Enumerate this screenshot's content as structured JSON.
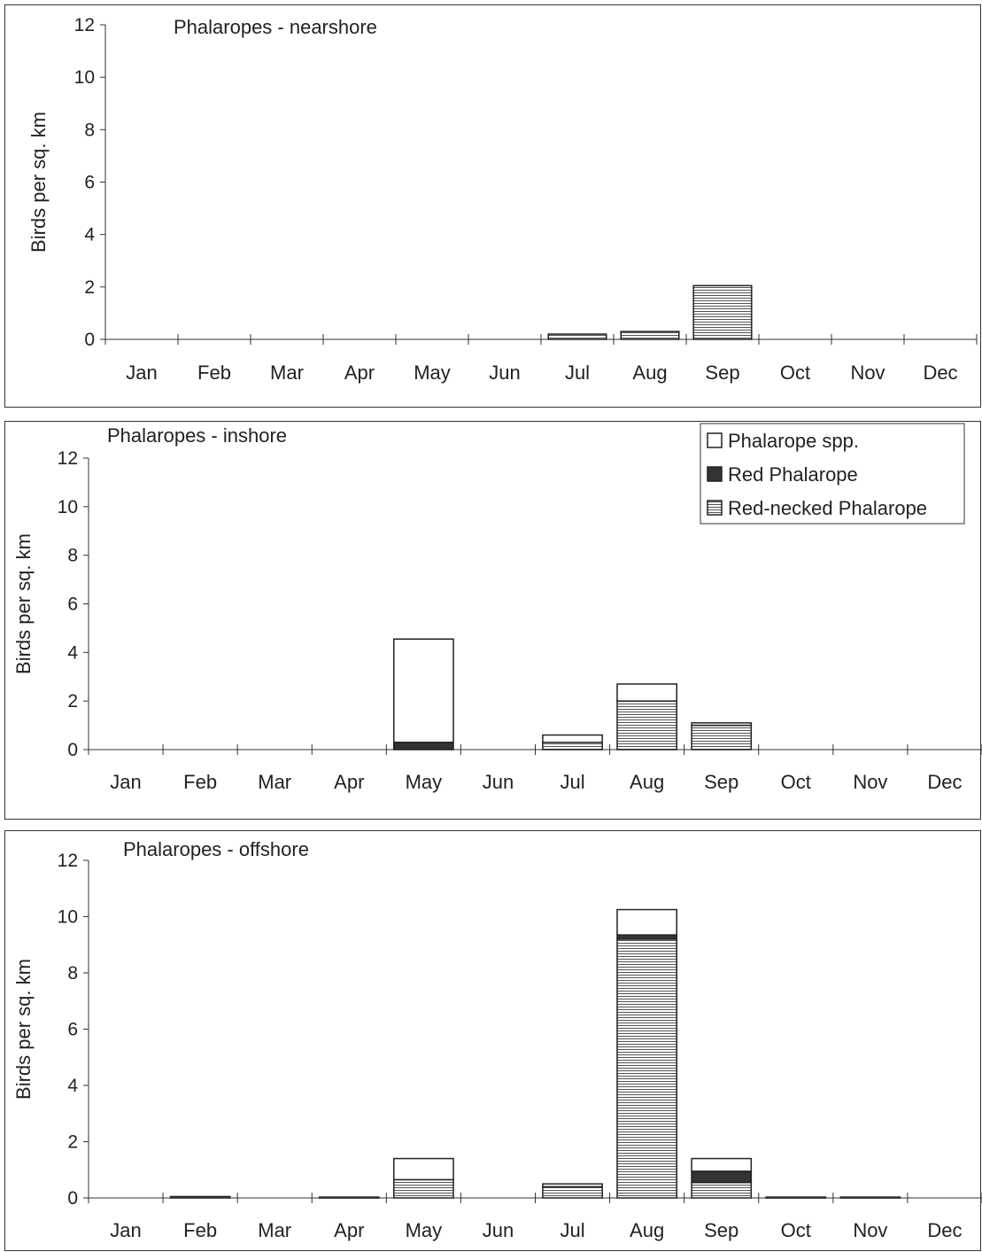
{
  "chart_data": [
    {
      "type": "bar",
      "stacked": true,
      "title": "Phalaropes - nearshore",
      "ylabel": "Birds per sq. km",
      "ylim": [
        0,
        12
      ],
      "yticks": [
        "0",
        "2",
        "4",
        "6",
        "8",
        "10",
        "12"
      ],
      "categories": [
        "Jan",
        "Feb",
        "Mar",
        "Apr",
        "May",
        "Jun",
        "Jul",
        "Aug",
        "Sep",
        "Oct",
        "Nov",
        "Dec"
      ],
      "series": [
        {
          "name": "Red-necked Phalarope",
          "values": [
            0,
            0,
            0,
            0,
            0,
            0,
            0.2,
            0.3,
            2.05,
            0,
            0,
            0
          ]
        },
        {
          "name": "Red Phalarope",
          "values": [
            0,
            0,
            0,
            0,
            0,
            0,
            0,
            0,
            0,
            0,
            0,
            0
          ]
        },
        {
          "name": "Phalarope spp.",
          "values": [
            0,
            0,
            0,
            0,
            0,
            0,
            0,
            0,
            0,
            0,
            0,
            0
          ]
        }
      ],
      "legend": false
    },
    {
      "type": "bar",
      "stacked": true,
      "title": "Phalaropes - inshore",
      "ylabel": "Birds per sq. km",
      "ylim": [
        0,
        12
      ],
      "yticks": [
        "0",
        "2",
        "4",
        "6",
        "8",
        "10",
        "12"
      ],
      "categories": [
        "Jan",
        "Feb",
        "Mar",
        "Apr",
        "May",
        "Jun",
        "Jul",
        "Aug",
        "Sep",
        "Oct",
        "Nov",
        "Dec"
      ],
      "series": [
        {
          "name": "Red-necked Phalarope",
          "values": [
            0,
            0,
            0,
            0,
            0,
            0,
            0.3,
            2.0,
            1.0,
            0,
            0,
            0
          ]
        },
        {
          "name": "Red Phalarope",
          "values": [
            0,
            0,
            0,
            0,
            0.3,
            0,
            0,
            0,
            0,
            0,
            0,
            0
          ]
        },
        {
          "name": "Phalarope spp.",
          "values": [
            0,
            0,
            0,
            0,
            4.25,
            0,
            0.3,
            0.7,
            0.1,
            0,
            0,
            0
          ]
        }
      ],
      "legend": true,
      "legend_position": "top-right",
      "legend_entries": [
        "Phalarope spp.",
        "Red Phalarope",
        "Red-necked Phalarope"
      ]
    },
    {
      "type": "bar",
      "stacked": true,
      "title": "Phalaropes - offshore",
      "ylabel": "Birds per sq. km",
      "ylim": [
        0,
        12
      ],
      "yticks": [
        "0",
        "2",
        "4",
        "6",
        "8",
        "10",
        "12"
      ],
      "categories": [
        "Jan",
        "Feb",
        "Mar",
        "Apr",
        "May",
        "Jun",
        "Jul",
        "Aug",
        "Sep",
        "Oct",
        "Nov",
        "Dec"
      ],
      "series": [
        {
          "name": "Red-necked Phalarope",
          "values": [
            0,
            0.05,
            0,
            0.03,
            0.65,
            0,
            0.4,
            9.2,
            0.55,
            0.03,
            0.03,
            0
          ]
        },
        {
          "name": "Red Phalarope",
          "values": [
            0,
            0,
            0,
            0,
            0,
            0,
            0,
            0.15,
            0.4,
            0,
            0,
            0
          ]
        },
        {
          "name": "Phalarope spp.",
          "values": [
            0,
            0,
            0,
            0,
            0.75,
            0,
            0.1,
            0.9,
            0.45,
            0,
            0,
            0
          ]
        }
      ],
      "legend": false
    }
  ]
}
